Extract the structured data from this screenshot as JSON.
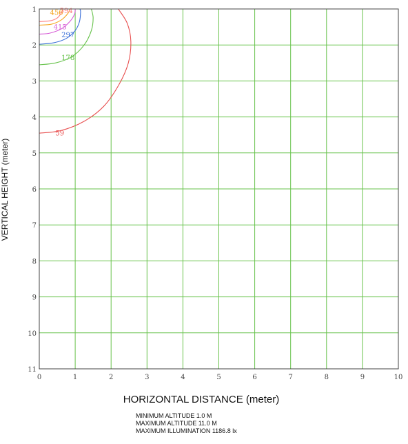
{
  "chart_data": {
    "type": "contour",
    "xlabel": "HORIZONTAL DISTANCE (meter)",
    "ylabel": "VERTICAL HEIGHT (meter)",
    "xlim": [
      0,
      10
    ],
    "ylim": [
      1,
      11
    ],
    "y_axis_inverted": true,
    "x_ticks": [
      "0",
      "1",
      "2",
      "3",
      "4",
      "5",
      "6",
      "7",
      "8",
      "9",
      "10"
    ],
    "y_ticks": [
      "1",
      "2",
      "3",
      "4",
      "5",
      "6",
      "7",
      "8",
      "9",
      "10",
      "11"
    ],
    "grid": true,
    "grid_color": "#66c24a",
    "series": [
      {
        "name": "594",
        "color": "#ff7f7f",
        "label_at": [
          0.75,
          1.05
        ],
        "points": [
          [
            0,
            1.35
          ],
          [
            0.3,
            1.33
          ],
          [
            0.5,
            1.25
          ],
          [
            0.62,
            1.1
          ],
          [
            0.66,
            1
          ]
        ]
      },
      {
        "name": "456",
        "color": "#f5a623",
        "label_at": [
          0.48,
          1.1
        ],
        "points": [
          [
            0,
            1.45
          ],
          [
            0.35,
            1.42
          ],
          [
            0.62,
            1.3
          ],
          [
            0.8,
            1.12
          ],
          [
            0.85,
            1
          ]
        ]
      },
      {
        "name": "415",
        "color": "#d65ad6",
        "label_at": [
          0.58,
          1.5
        ],
        "points": [
          [
            0,
            1.7
          ],
          [
            0.3,
            1.67
          ],
          [
            0.62,
            1.55
          ],
          [
            0.85,
            1.35
          ],
          [
            0.98,
            1.15
          ],
          [
            1.0,
            1
          ]
        ]
      },
      {
        "name": "297",
        "color": "#3a6fd8",
        "label_at": [
          0.8,
          1.72
        ],
        "points": [
          [
            0,
            1.98
          ],
          [
            0.4,
            1.94
          ],
          [
            0.75,
            1.82
          ],
          [
            1.0,
            1.6
          ],
          [
            1.12,
            1.35
          ],
          [
            1.15,
            1.08
          ],
          [
            1.13,
            1
          ]
        ]
      },
      {
        "name": "178",
        "color": "#66c24a",
        "label_at": [
          0.8,
          2.35
        ],
        "points": [
          [
            0,
            2.55
          ],
          [
            0.45,
            2.5
          ],
          [
            0.9,
            2.33
          ],
          [
            1.25,
            2.0
          ],
          [
            1.45,
            1.6
          ],
          [
            1.5,
            1.25
          ],
          [
            1.45,
            1
          ]
        ]
      },
      {
        "name": "59",
        "color": "#e85050",
        "label_at": [
          0.57,
          4.45
        ],
        "points": [
          [
            0,
            4.45
          ],
          [
            0.6,
            4.38
          ],
          [
            1.25,
            4.12
          ],
          [
            1.8,
            3.7
          ],
          [
            2.22,
            3.1
          ],
          [
            2.48,
            2.5
          ],
          [
            2.55,
            1.9
          ],
          [
            2.45,
            1.4
          ],
          [
            2.2,
            1.0
          ]
        ]
      }
    ]
  },
  "notes": {
    "min_altitude": "MINIMUM  ALTITUDE  1.0 M",
    "max_altitude": "MAXIMUM  ALTITUDE  11.0 M",
    "max_illumination": "MAXIMUM  ILLUMINATION 1186.8 lx"
  }
}
